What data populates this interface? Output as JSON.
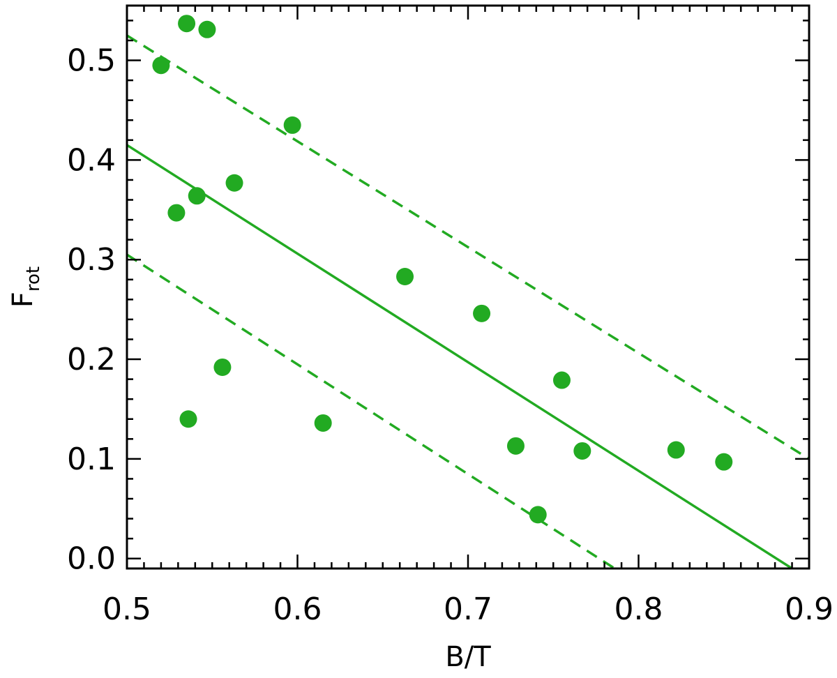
{
  "chart_data": {
    "type": "scatter",
    "title": "",
    "xlabel": "B/T",
    "ylabel": {
      "main": "F",
      "subscript": "rot"
    },
    "xlim": [
      0.5,
      0.9
    ],
    "ylim": [
      -0.01,
      0.555
    ],
    "x_ticks": [
      0.5,
      0.6,
      0.7,
      0.8,
      0.9
    ],
    "x_tick_labels": [
      "0.5",
      "0.6",
      "0.7",
      "0.8",
      "0.9"
    ],
    "y_ticks": [
      0.0,
      0.1,
      0.2,
      0.3,
      0.4,
      0.5
    ],
    "y_tick_labels": [
      "0.0",
      "0.1",
      "0.2",
      "0.3",
      "0.4",
      "0.5"
    ],
    "grid": false,
    "marker_color": "#22aa22",
    "line_color": "#22aa22",
    "points": [
      {
        "x": 0.535,
        "y": 0.537
      },
      {
        "x": 0.547,
        "y": 0.531
      },
      {
        "x": 0.52,
        "y": 0.495
      },
      {
        "x": 0.597,
        "y": 0.435
      },
      {
        "x": 0.563,
        "y": 0.377
      },
      {
        "x": 0.541,
        "y": 0.364
      },
      {
        "x": 0.529,
        "y": 0.347
      },
      {
        "x": 0.663,
        "y": 0.283
      },
      {
        "x": 0.708,
        "y": 0.246
      },
      {
        "x": 0.556,
        "y": 0.192
      },
      {
        "x": 0.755,
        "y": 0.179
      },
      {
        "x": 0.536,
        "y": 0.14
      },
      {
        "x": 0.615,
        "y": 0.136
      },
      {
        "x": 0.728,
        "y": 0.113
      },
      {
        "x": 0.767,
        "y": 0.108
      },
      {
        "x": 0.822,
        "y": 0.109
      },
      {
        "x": 0.85,
        "y": 0.097
      },
      {
        "x": 0.741,
        "y": 0.044
      }
    ],
    "fit_lines": [
      {
        "style": "solid",
        "x": [
          0.5,
          0.89
        ],
        "y": [
          0.415,
          -0.01
        ]
      },
      {
        "style": "dashed",
        "x": [
          0.5,
          0.9
        ],
        "y": [
          0.525,
          0.1
        ]
      },
      {
        "style": "dashed",
        "x": [
          0.5,
          0.786
        ],
        "y": [
          0.305,
          -0.01
        ]
      }
    ]
  }
}
